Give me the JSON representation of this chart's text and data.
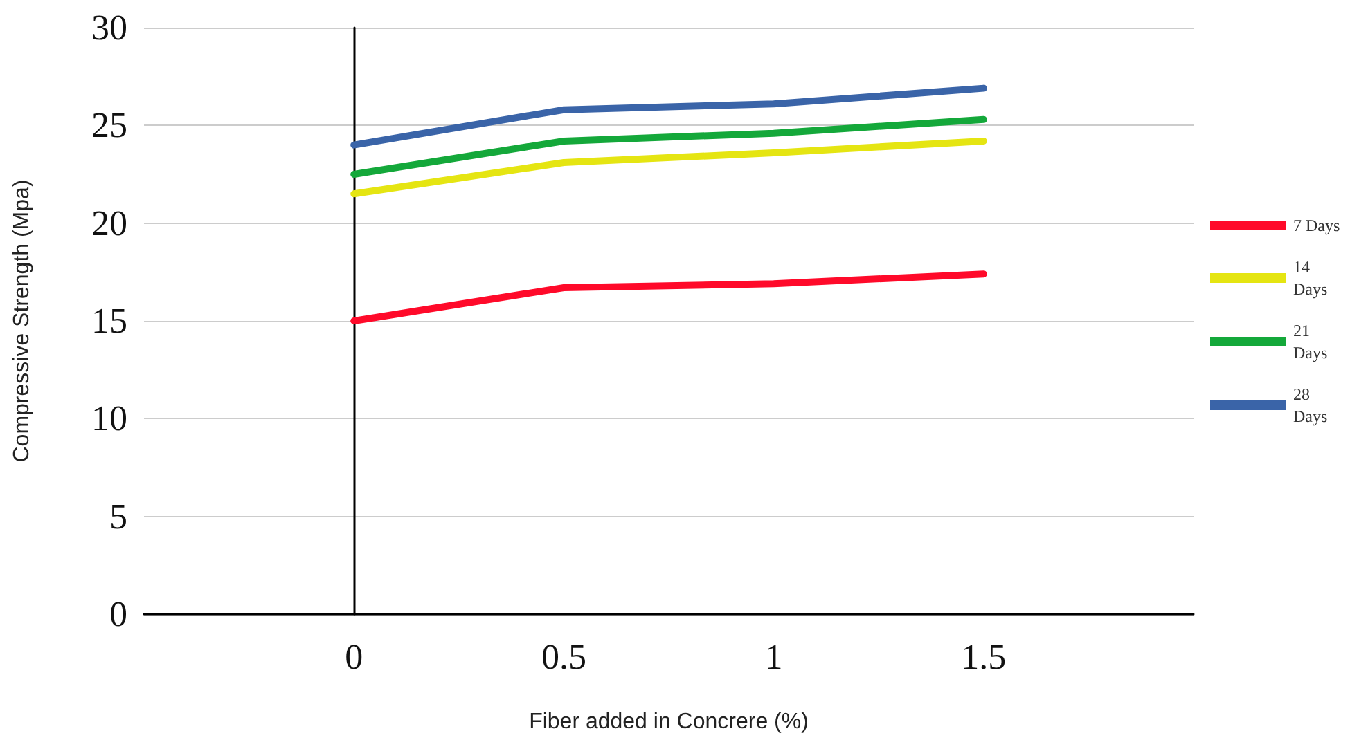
{
  "chart_data": {
    "type": "line",
    "xlabel": "Fiber added in Concrere (%)",
    "ylabel": "Compressive Strength (Mpa)",
    "x": [
      0,
      0.5,
      1,
      1.5
    ],
    "xlim": [
      -0.5,
      2
    ],
    "xticks": [
      0,
      0.5,
      1,
      1.5
    ],
    "ylim": [
      0,
      30
    ],
    "yticks": [
      0,
      5,
      10,
      15,
      20,
      25,
      30
    ],
    "grid": "y",
    "legend": "right",
    "marker": "none",
    "line_style": "solid",
    "series": [
      {
        "name": "7 Days",
        "color": "#ff0a2a",
        "values": [
          15,
          16.7,
          16.9,
          17.4
        ]
      },
      {
        "name": "14 Days",
        "color": "#e5e512",
        "values": [
          21.5,
          23.1,
          23.6,
          24.2
        ]
      },
      {
        "name": "21 Days",
        "color": "#14a83a",
        "values": [
          22.5,
          24.2,
          24.6,
          25.3
        ]
      },
      {
        "name": "28 Days",
        "color": "#3a64a8",
        "values": [
          24.0,
          25.8,
          26.1,
          26.9
        ]
      }
    ]
  }
}
